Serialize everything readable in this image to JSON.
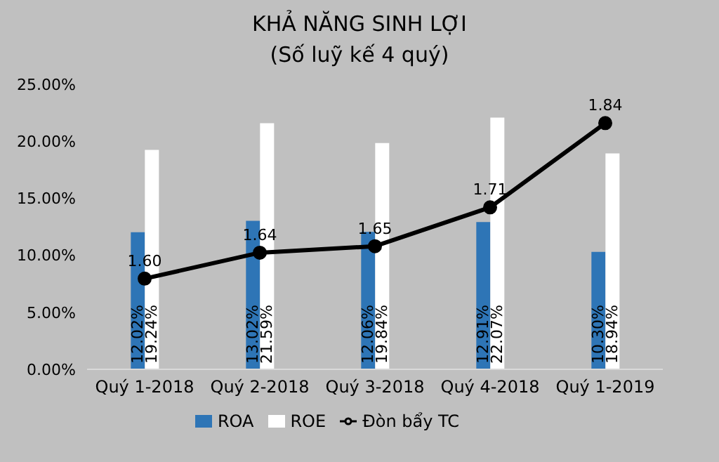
{
  "chart_data": {
    "type": "bar",
    "title": "KHẢ NĂNG SINH LỢI",
    "subtitle": "(Số luỹ kế 4 quý)",
    "categories": [
      "Quý 1-2018",
      "Quý 2-2018",
      "Quý 3-2018",
      "Quý 4-2018",
      "Quý 1-2019"
    ],
    "series": [
      {
        "name": "ROA",
        "color": "#2e75b6",
        "values": [
          12.02,
          13.02,
          12.06,
          12.91,
          10.3
        ],
        "value_labels": [
          "12.02%",
          "13.02%",
          "12.06%",
          "12.91%",
          "10.30%"
        ]
      },
      {
        "name": "ROE",
        "color": "#ffffff",
        "values": [
          19.24,
          21.59,
          19.84,
          22.07,
          18.94
        ],
        "value_labels": [
          "19.24%",
          "21.59%",
          "19.84%",
          "22.07%",
          "18.94%"
        ]
      },
      {
        "name": "Đòn bẩy TC",
        "type": "line",
        "axis": "y2",
        "color": "#000000",
        "values": [
          1.6,
          1.64,
          1.65,
          1.71,
          1.84
        ],
        "value_labels": [
          "1.60",
          "1.64",
          "1.65",
          "1.71",
          "1.84"
        ]
      }
    ],
    "ylim": [
      0,
      25
    ],
    "yticks": [
      {
        "value": 0,
        "label": "0.00%"
      },
      {
        "value": 5,
        "label": "5.00%"
      },
      {
        "value": 10,
        "label": "10.00%"
      },
      {
        "value": 15,
        "label": "15.00%"
      },
      {
        "value": 20,
        "label": "20.00%"
      },
      {
        "value": 25,
        "label": "25.00%"
      }
    ],
    "tick_labels": "xy",
    "grid": false,
    "legend": "bottom",
    "marker": "circle",
    "line_style": "solid"
  }
}
